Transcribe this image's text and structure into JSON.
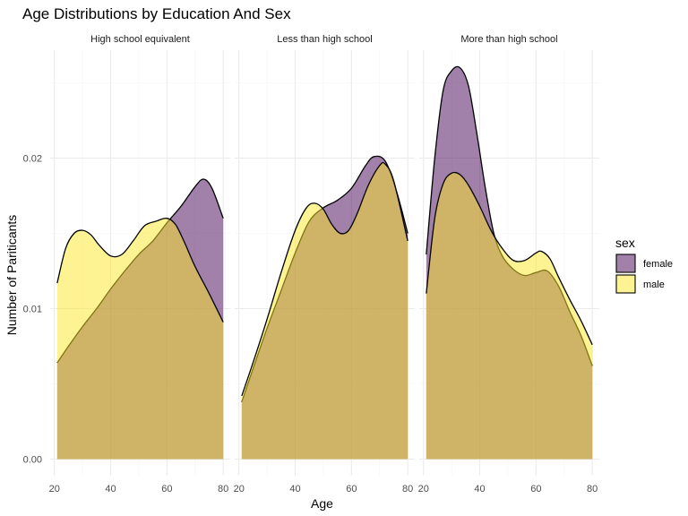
{
  "chart_data": {
    "type": "area",
    "title": "Age Distributions by Education And Sex",
    "xlabel": "Age",
    "ylabel": "Number of Pariticants",
    "xlim": [
      18.5,
      82.5
    ],
    "ylim": [
      -0.0005,
      0.0278
    ],
    "x_ticks": [
      20,
      40,
      60,
      80
    ],
    "y_ticks": [
      0.0,
      0.01,
      0.02
    ],
    "y_tick_labels": [
      "0.00",
      "0.01",
      "0.02"
    ],
    "grid": true,
    "legend": {
      "title": "sex",
      "placement": "right",
      "entries": [
        {
          "label": "female",
          "color": "#440154"
        },
        {
          "label": "male",
          "color": "#FDE725"
        }
      ]
    },
    "fill_alpha": 0.5,
    "panels": [
      {
        "label": "High school equivalent",
        "series": [
          {
            "name": "female",
            "x": [
              21,
              25,
              30,
              35,
              40,
              45,
              50,
              55,
              60,
              65,
              70,
              73,
              76,
              80
            ],
            "y": [
              0.0064,
              0.0075,
              0.0088,
              0.01,
              0.0113,
              0.0125,
              0.0136,
              0.0145,
              0.0157,
              0.0168,
              0.0181,
              0.0186,
              0.018,
              0.016
            ]
          },
          {
            "name": "male",
            "x": [
              21,
              24,
              27,
              30,
              33,
              36,
              40,
              44,
              48,
              52,
              56,
              60,
              63,
              66,
              70,
              75,
              80
            ],
            "y": [
              0.0117,
              0.014,
              0.015,
              0.0152,
              0.0149,
              0.0142,
              0.0135,
              0.0136,
              0.0145,
              0.0155,
              0.0158,
              0.016,
              0.0156,
              0.0145,
              0.0128,
              0.011,
              0.0091
            ]
          }
        ]
      },
      {
        "label": "Less than high school",
        "series": [
          {
            "name": "female",
            "x": [
              21,
              25,
              30,
              35,
              40,
              45,
              50,
              55,
              60,
              65,
              68,
              72,
              76,
              80
            ],
            "y": [
              0.0038,
              0.006,
              0.0087,
              0.0112,
              0.0137,
              0.0158,
              0.0167,
              0.0172,
              0.018,
              0.0195,
              0.0201,
              0.0198,
              0.0178,
              0.015
            ]
          },
          {
            "name": "male",
            "x": [
              21,
              25,
              30,
              35,
              40,
              44,
              47,
              50,
              53,
              56,
              59,
              62,
              66,
              70,
              72,
              75,
              80
            ],
            "y": [
              0.0042,
              0.0064,
              0.0093,
              0.0124,
              0.0152,
              0.0167,
              0.017,
              0.0166,
              0.0156,
              0.015,
              0.0152,
              0.0163,
              0.0182,
              0.0195,
              0.0196,
              0.0185,
              0.0145
            ]
          }
        ]
      },
      {
        "label": "More than high school",
        "series": [
          {
            "name": "female",
            "x": [
              21,
              24,
              27,
              30,
              33,
              36,
              39,
              42,
              45,
              48,
              52,
              56,
              60,
              64,
              68,
              72,
              76,
              80
            ],
            "y": [
              0.0136,
              0.02,
              0.0245,
              0.0258,
              0.026,
              0.0248,
              0.0216,
              0.018,
              0.015,
              0.0135,
              0.0126,
              0.0122,
              0.0124,
              0.0125,
              0.0115,
              0.0098,
              0.0082,
              0.0062
            ]
          },
          {
            "name": "male",
            "x": [
              21,
              24,
              27,
              30,
              33,
              36,
              40,
              44,
              48,
              52,
              56,
              60,
              62,
              65,
              68,
              72,
              76,
              80
            ],
            "y": [
              0.011,
              0.016,
              0.0183,
              0.019,
              0.0189,
              0.0182,
              0.0168,
              0.0152,
              0.014,
              0.0132,
              0.0132,
              0.0137,
              0.0138,
              0.0133,
              0.0121,
              0.0106,
              0.0092,
              0.0076
            ]
          }
        ]
      }
    ]
  }
}
